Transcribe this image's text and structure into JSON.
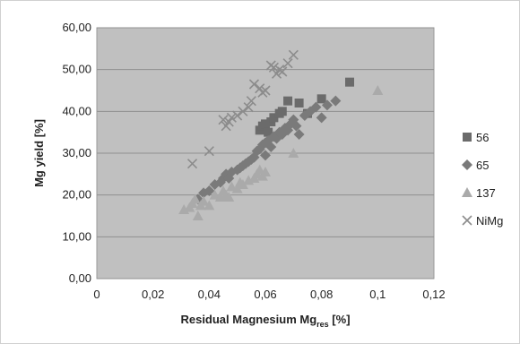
{
  "chart_data": {
    "type": "scatter",
    "title": "",
    "xlabel": "Residual Magnesium Mg",
    "xlabel_sub": "res",
    "xlabel_suffix": " [%]",
    "ylabel": "Mg yield [%]",
    "xlim": [
      0,
      0.12
    ],
    "ylim": [
      0,
      60
    ],
    "x_ticks": [
      0,
      0.02,
      0.04,
      0.06,
      0.08,
      0.1,
      0.12
    ],
    "x_tick_labels": [
      "0",
      "0,02",
      "0,04",
      "0,06",
      "0,08",
      "0,1",
      "0,12"
    ],
    "y_ticks": [
      0,
      10,
      20,
      30,
      40,
      50,
      60
    ],
    "y_tick_labels": [
      "0,00",
      "10,00",
      "20,00",
      "30,00",
      "40,00",
      "50,00",
      "60,00"
    ],
    "grid": true,
    "legend_position": "right",
    "plot_area_color": "#c0c0c0",
    "series": [
      {
        "name": "56",
        "marker": "square",
        "color": "#6b6b6b",
        "points": [
          [
            0.058,
            35.5
          ],
          [
            0.059,
            36.5
          ],
          [
            0.06,
            37.0
          ],
          [
            0.061,
            35.0
          ],
          [
            0.062,
            37.5
          ],
          [
            0.063,
            38.5
          ],
          [
            0.065,
            39.5
          ],
          [
            0.066,
            40.0
          ],
          [
            0.068,
            42.5
          ],
          [
            0.072,
            42.0
          ],
          [
            0.075,
            39.5
          ],
          [
            0.08,
            43.0
          ],
          [
            0.09,
            47.0
          ]
        ]
      },
      {
        "name": "65",
        "marker": "diamond",
        "color": "#7a7a7a",
        "points": [
          [
            0.036,
            19.0
          ],
          [
            0.038,
            20.5
          ],
          [
            0.04,
            21.0
          ],
          [
            0.042,
            22.5
          ],
          [
            0.044,
            23.0
          ],
          [
            0.045,
            24.0
          ],
          [
            0.046,
            25.0
          ],
          [
            0.047,
            24.0
          ],
          [
            0.048,
            25.5
          ],
          [
            0.05,
            26.0
          ],
          [
            0.051,
            26.5
          ],
          [
            0.052,
            27.0
          ],
          [
            0.053,
            27.5
          ],
          [
            0.054,
            28.0
          ],
          [
            0.055,
            28.5
          ],
          [
            0.056,
            29.0
          ],
          [
            0.057,
            30.5
          ],
          [
            0.058,
            31.0
          ],
          [
            0.059,
            32.0
          ],
          [
            0.06,
            32.5
          ],
          [
            0.06,
            29.5
          ],
          [
            0.061,
            33.0
          ],
          [
            0.062,
            31.5
          ],
          [
            0.063,
            34.0
          ],
          [
            0.064,
            33.5
          ],
          [
            0.065,
            35.0
          ],
          [
            0.066,
            34.5
          ],
          [
            0.067,
            36.0
          ],
          [
            0.068,
            35.5
          ],
          [
            0.069,
            37.0
          ],
          [
            0.07,
            38.0
          ],
          [
            0.071,
            36.5
          ],
          [
            0.072,
            34.5
          ],
          [
            0.074,
            39.0
          ],
          [
            0.076,
            40.0
          ],
          [
            0.078,
            41.0
          ],
          [
            0.08,
            38.5
          ],
          [
            0.082,
            41.5
          ],
          [
            0.085,
            42.5
          ]
        ]
      },
      {
        "name": "137",
        "marker": "triangle",
        "color": "#aaaaaa",
        "points": [
          [
            0.031,
            16.5
          ],
          [
            0.033,
            17.0
          ],
          [
            0.034,
            18.0
          ],
          [
            0.035,
            19.0
          ],
          [
            0.036,
            15.0
          ],
          [
            0.037,
            17.5
          ],
          [
            0.038,
            18.5
          ],
          [
            0.04,
            17.5
          ],
          [
            0.042,
            20.0
          ],
          [
            0.044,
            19.5
          ],
          [
            0.045,
            21.0
          ],
          [
            0.046,
            20.0
          ],
          [
            0.047,
            19.5
          ],
          [
            0.048,
            22.0
          ],
          [
            0.05,
            21.5
          ],
          [
            0.051,
            23.0
          ],
          [
            0.052,
            22.5
          ],
          [
            0.054,
            23.5
          ],
          [
            0.056,
            24.0
          ],
          [
            0.057,
            25.0
          ],
          [
            0.058,
            26.0
          ],
          [
            0.059,
            24.5
          ],
          [
            0.06,
            25.5
          ],
          [
            0.07,
            30.0
          ],
          [
            0.1,
            45.0
          ]
        ]
      },
      {
        "name": "NiMg",
        "marker": "x",
        "color": "#8c8c8c",
        "points": [
          [
            0.034,
            27.5
          ],
          [
            0.04,
            30.5
          ],
          [
            0.045,
            38.0
          ],
          [
            0.046,
            36.5
          ],
          [
            0.047,
            37.5
          ],
          [
            0.048,
            38.5
          ],
          [
            0.05,
            39.0
          ],
          [
            0.052,
            40.0
          ],
          [
            0.054,
            41.0
          ],
          [
            0.055,
            42.5
          ],
          [
            0.056,
            46.5
          ],
          [
            0.058,
            45.5
          ],
          [
            0.059,
            44.5
          ],
          [
            0.06,
            45.0
          ],
          [
            0.062,
            51.0
          ],
          [
            0.063,
            50.5
          ],
          [
            0.064,
            49.0
          ],
          [
            0.065,
            50.0
          ],
          [
            0.066,
            49.5
          ],
          [
            0.068,
            51.5
          ],
          [
            0.07,
            53.5
          ]
        ]
      }
    ]
  }
}
